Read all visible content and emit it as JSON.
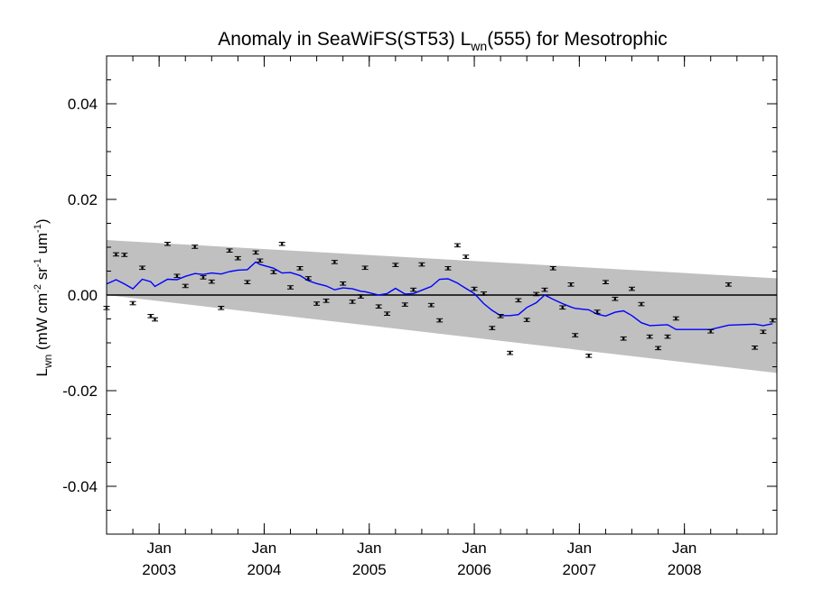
{
  "chart_data": {
    "type": "scatter",
    "title": {
      "prefix": "Anomaly in SeaWiFS(ST53) L",
      "sub": "wn",
      "suffix": "(555) for Mesotrophic"
    },
    "ylabel": {
      "main": "L",
      "sub": "wn",
      "units_prefix": " (mW cm",
      "exp1": "-2",
      "units_mid": " sr",
      "exp2": "-1",
      "units_mid2": " um",
      "exp3": "-1",
      "units_suffix": ")"
    },
    "xlim": [
      2002.5,
      2008.88
    ],
    "ylim": [
      -0.05,
      0.05
    ],
    "y_ticks": [
      {
        "value": 0.04,
        "label": "0.04"
      },
      {
        "value": 0.02,
        "label": "0.02"
      },
      {
        "value": 0.0,
        "label": "0.00"
      },
      {
        "value": -0.02,
        "label": "-0.02"
      },
      {
        "value": -0.04,
        "label": "-0.04"
      }
    ],
    "y_minor_step": 0.005,
    "x_ticks": [
      {
        "value": 2003.0,
        "month": "Jan",
        "year": "2003"
      },
      {
        "value": 2004.0,
        "month": "Jan",
        "year": "2004"
      },
      {
        "value": 2005.0,
        "month": "Jan",
        "year": "2005"
      },
      {
        "value": 2006.0,
        "month": "Jan",
        "year": "2006"
      },
      {
        "value": 2007.0,
        "month": "Jan",
        "year": "2007"
      },
      {
        "value": 2008.0,
        "month": "Jan",
        "year": "2008"
      }
    ],
    "x_minor_step": 0.25,
    "zero_line": 0.0,
    "band": {
      "upper": [
        [
          2002.5,
          0.0115
        ],
        [
          2008.88,
          0.0035
        ]
      ],
      "lower": [
        [
          2002.5,
          0.0
        ],
        [
          2008.88,
          -0.0163
        ]
      ]
    },
    "points": [
      [
        2002.5,
        -0.0027
      ],
      [
        2002.59,
        0.0085
      ],
      [
        2002.67,
        0.0084
      ],
      [
        2002.75,
        -0.0017
      ],
      [
        2002.84,
        0.0057
      ],
      [
        2002.92,
        -0.0044
      ],
      [
        2002.96,
        -0.0051
      ],
      [
        2003.08,
        0.0107
      ],
      [
        2003.17,
        0.004
      ],
      [
        2003.25,
        0.0019
      ],
      [
        2003.34,
        0.0101
      ],
      [
        2003.42,
        0.0037
      ],
      [
        2003.5,
        0.0028
      ],
      [
        2003.59,
        -0.0027
      ],
      [
        2003.67,
        0.0093
      ],
      [
        2003.75,
        0.0077
      ],
      [
        2003.84,
        0.0027
      ],
      [
        2003.92,
        0.0089
      ],
      [
        2003.96,
        0.0072
      ],
      [
        2004.09,
        0.0048
      ],
      [
        2004.17,
        0.0107
      ],
      [
        2004.25,
        0.0016
      ],
      [
        2004.34,
        0.0056
      ],
      [
        2004.42,
        0.0035
      ],
      [
        2004.5,
        -0.0018
      ],
      [
        2004.59,
        -0.0012
      ],
      [
        2004.67,
        0.0069
      ],
      [
        2004.75,
        0.0024
      ],
      [
        2004.84,
        -0.0014
      ],
      [
        2004.92,
        -0.0003
      ],
      [
        2004.96,
        0.0057
      ],
      [
        2005.09,
        -0.0024
      ],
      [
        2005.17,
        -0.0039
      ],
      [
        2005.25,
        0.0063
      ],
      [
        2005.34,
        -0.002
      ],
      [
        2005.42,
        0.0011
      ],
      [
        2005.5,
        0.0064
      ],
      [
        2005.59,
        -0.0021
      ],
      [
        2005.67,
        -0.0053
      ],
      [
        2005.75,
        0.0056
      ],
      [
        2005.84,
        0.0104
      ],
      [
        2005.92,
        0.008
      ],
      [
        2006.0,
        0.0013
      ],
      [
        2006.09,
        0.0003
      ],
      [
        2006.17,
        -0.0069
      ],
      [
        2006.25,
        -0.0044
      ],
      [
        2006.34,
        -0.0121
      ],
      [
        2006.42,
        -0.0011
      ],
      [
        2006.5,
        -0.0052
      ],
      [
        2006.59,
        0.0002
      ],
      [
        2006.67,
        0.0011
      ],
      [
        2006.75,
        0.0056
      ],
      [
        2006.84,
        -0.0026
      ],
      [
        2006.92,
        0.0022
      ],
      [
        2006.96,
        -0.0084
      ],
      [
        2007.09,
        -0.0127
      ],
      [
        2007.17,
        -0.0035
      ],
      [
        2007.25,
        0.0027
      ],
      [
        2007.34,
        -0.0008
      ],
      [
        2007.42,
        -0.0091
      ],
      [
        2007.5,
        0.0013
      ],
      [
        2007.59,
        -0.0019
      ],
      [
        2007.67,
        -0.0087
      ],
      [
        2007.75,
        -0.0111
      ],
      [
        2007.84,
        -0.0087
      ],
      [
        2007.92,
        -0.0049
      ],
      [
        2008.25,
        -0.0076
      ],
      [
        2008.42,
        0.0022
      ],
      [
        2008.67,
        -0.011
      ],
      [
        2008.75,
        -0.0077
      ],
      [
        2008.84,
        -0.0053
      ]
    ],
    "running_mean": {
      "color": "#0000ff",
      "points": [
        [
          2002.5,
          0.0023
        ],
        [
          2002.59,
          0.0032
        ],
        [
          2002.67,
          0.0023
        ],
        [
          2002.75,
          0.0013
        ],
        [
          2002.84,
          0.0033
        ],
        [
          2002.92,
          0.0028
        ],
        [
          2002.96,
          0.0018
        ],
        [
          2003.08,
          0.0033
        ],
        [
          2003.17,
          0.0032
        ],
        [
          2003.25,
          0.0039
        ],
        [
          2003.34,
          0.0045
        ],
        [
          2003.42,
          0.0043
        ],
        [
          2003.5,
          0.0046
        ],
        [
          2003.59,
          0.0044
        ],
        [
          2003.67,
          0.0049
        ],
        [
          2003.75,
          0.0052
        ],
        [
          2003.84,
          0.0053
        ],
        [
          2003.92,
          0.0069
        ],
        [
          2003.96,
          0.0064
        ],
        [
          2004.09,
          0.0056
        ],
        [
          2004.17,
          0.0046
        ],
        [
          2004.25,
          0.0047
        ],
        [
          2004.34,
          0.0041
        ],
        [
          2004.42,
          0.003
        ],
        [
          2004.5,
          0.0024
        ],
        [
          2004.59,
          0.0019
        ],
        [
          2004.67,
          0.0011
        ],
        [
          2004.75,
          0.0015
        ],
        [
          2004.84,
          0.0013
        ],
        [
          2004.92,
          0.0008
        ],
        [
          2004.96,
          0.0007
        ],
        [
          2005.09,
          0.0
        ],
        [
          2005.17,
          0.0003
        ],
        [
          2005.25,
          0.0014
        ],
        [
          2005.34,
          0.0002
        ],
        [
          2005.42,
          0.0003
        ],
        [
          2005.5,
          0.001
        ],
        [
          2005.59,
          0.0018
        ],
        [
          2005.67,
          0.0033
        ],
        [
          2005.75,
          0.0034
        ],
        [
          2005.84,
          0.0025
        ],
        [
          2005.92,
          0.0014
        ],
        [
          2006.0,
          0.0003
        ],
        [
          2006.09,
          -0.0018
        ],
        [
          2006.17,
          -0.0032
        ],
        [
          2006.25,
          -0.0043
        ],
        [
          2006.34,
          -0.0043
        ],
        [
          2006.42,
          -0.0041
        ],
        [
          2006.5,
          -0.0026
        ],
        [
          2006.59,
          -0.0016
        ],
        [
          2006.67,
          0.0
        ],
        [
          2006.75,
          -0.0009
        ],
        [
          2006.84,
          -0.0018
        ],
        [
          2006.92,
          -0.0025
        ],
        [
          2006.96,
          -0.0028
        ],
        [
          2007.09,
          -0.0031
        ],
        [
          2007.17,
          -0.004
        ],
        [
          2007.25,
          -0.0044
        ],
        [
          2007.34,
          -0.0036
        ],
        [
          2007.42,
          -0.0033
        ],
        [
          2007.5,
          -0.0043
        ],
        [
          2007.59,
          -0.0058
        ],
        [
          2007.67,
          -0.0064
        ],
        [
          2007.75,
          -0.0063
        ],
        [
          2007.84,
          -0.0062
        ],
        [
          2007.92,
          -0.0072
        ],
        [
          2008.25,
          -0.0072
        ],
        [
          2008.42,
          -0.0063
        ],
        [
          2008.67,
          -0.0061
        ],
        [
          2008.75,
          -0.0064
        ],
        [
          2008.84,
          -0.006
        ]
      ]
    },
    "colors": {
      "band": "#c0c0c0",
      "line": "#0000ff",
      "points": "#000000",
      "axes": "#000000"
    },
    "grid": false
  }
}
